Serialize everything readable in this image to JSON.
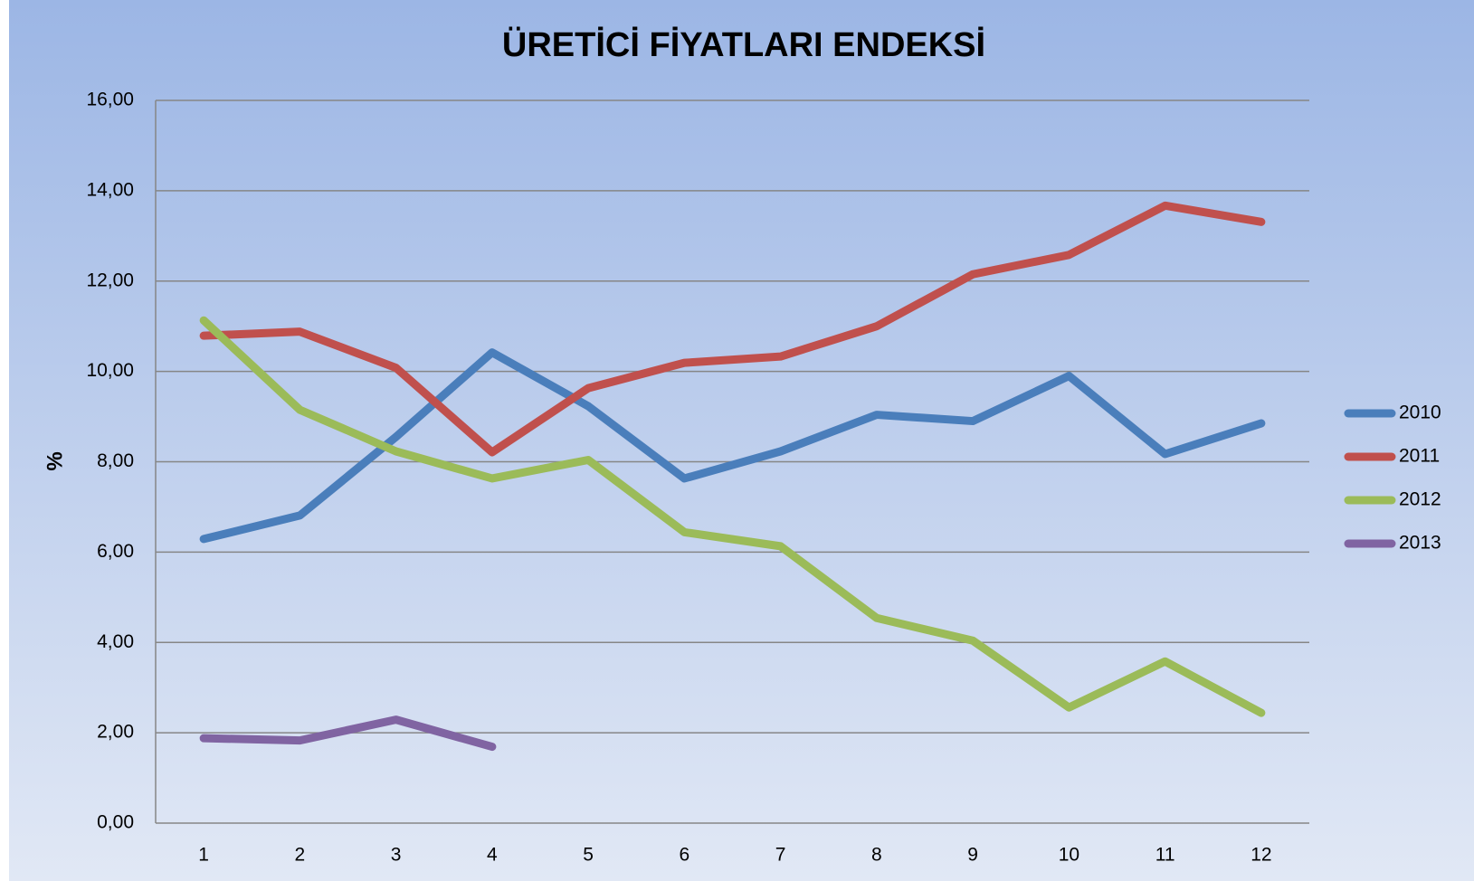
{
  "chart_data": {
    "type": "line",
    "title": "ÜRETİCİ FİYATLARI ENDEKSİ",
    "y_label": "%",
    "categories": [
      1,
      2,
      3,
      4,
      5,
      6,
      7,
      8,
      9,
      10,
      11,
      12
    ],
    "series": [
      {
        "name": "2010",
        "color": "#4a7ebb",
        "values": [
          6.29,
          6.81,
          8.55,
          10.42,
          9.23,
          7.63,
          8.23,
          9.04,
          8.9,
          9.9,
          8.17,
          8.85
        ]
      },
      {
        "name": "2011",
        "color": "#c0504d",
        "values": [
          10.79,
          10.88,
          10.08,
          8.21,
          9.63,
          10.19,
          10.33,
          11.0,
          12.15,
          12.58,
          13.67,
          13.31
        ]
      },
      {
        "name": "2012",
        "color": "#9bbb59",
        "values": [
          11.13,
          9.15,
          8.23,
          7.63,
          8.04,
          6.44,
          6.13,
          4.54,
          4.04,
          2.56,
          3.58,
          2.44
        ]
      },
      {
        "name": "2013",
        "color": "#8064a2",
        "values": [
          1.88,
          1.83,
          2.29,
          1.69,
          null,
          null,
          null,
          null,
          null,
          null,
          null,
          null
        ]
      }
    ],
    "ylim": [
      0,
      16
    ],
    "yticks": [
      {
        "value": 0,
        "label": "0,00"
      },
      {
        "value": 2,
        "label": "2,00"
      },
      {
        "value": 4,
        "label": "4,00"
      },
      {
        "value": 6,
        "label": "6,00"
      },
      {
        "value": 8,
        "label": "8,00"
      },
      {
        "value": 10,
        "label": "10,00"
      },
      {
        "value": 12,
        "label": "12,00"
      },
      {
        "value": 14,
        "label": "14,00"
      },
      {
        "value": 16,
        "label": "16,00"
      }
    ],
    "grid": true,
    "legend": "right"
  }
}
